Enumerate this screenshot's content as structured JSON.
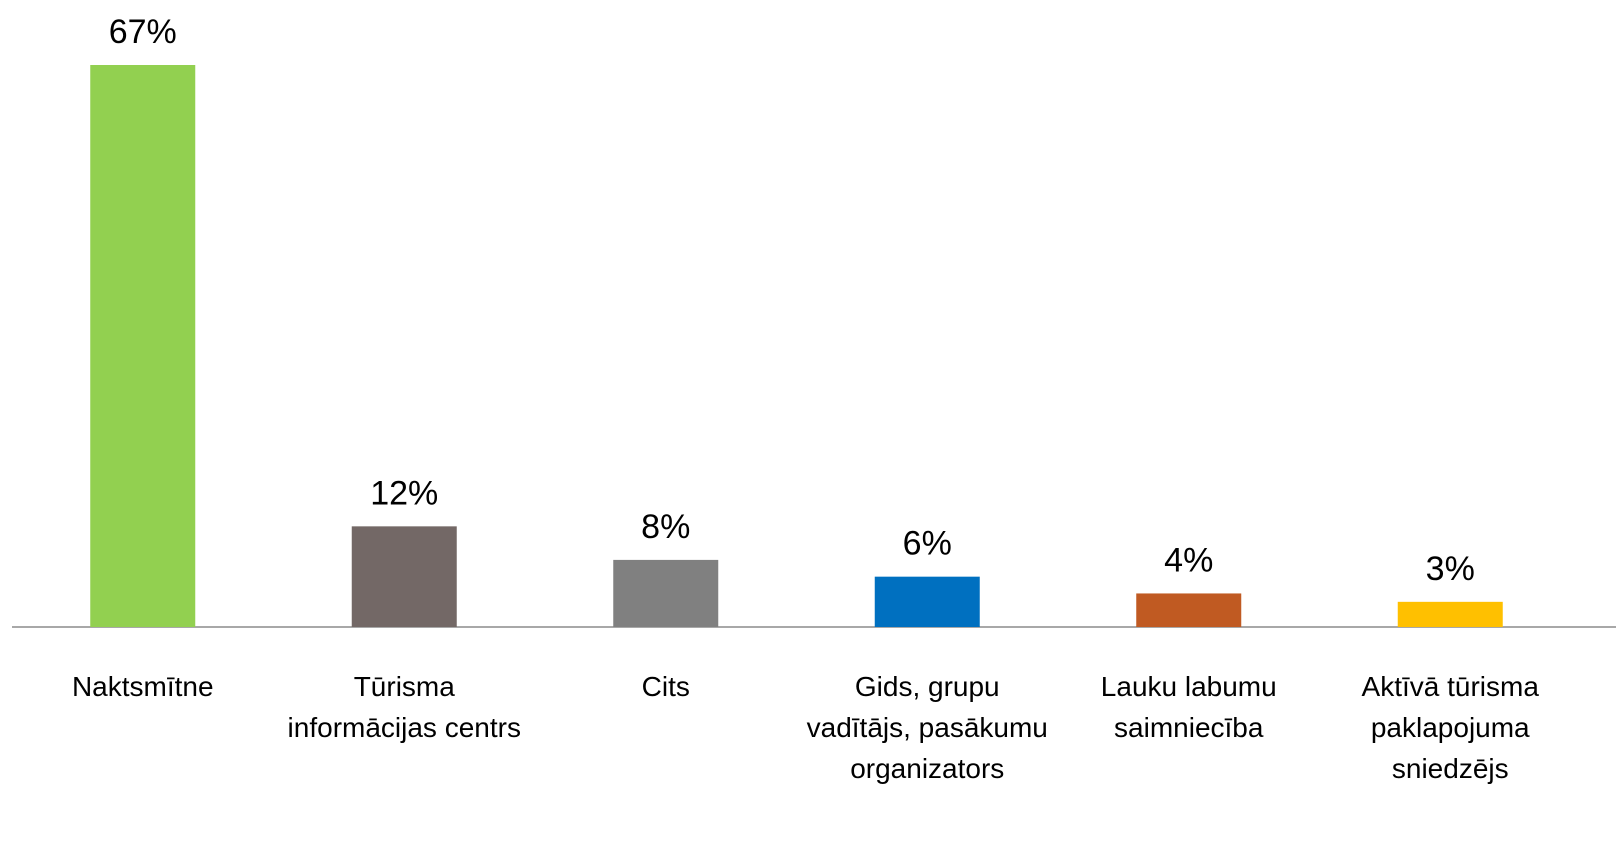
{
  "chart_data": {
    "type": "bar",
    "categories": [
      "Naktsmītne",
      "Tūrisma informācijas centrs",
      "Cits",
      "Gids, grupu vadītājs, pasākumu organizators",
      "Lauku labumu saimniecība",
      "Aktīvā tūrisma paklapojuma sniedzējs"
    ],
    "values": [
      67,
      12,
      8,
      6,
      4,
      3
    ],
    "value_labels": [
      "67%",
      "12%",
      "8%",
      "6%",
      "4%",
      "3%"
    ],
    "colors": [
      "#92d050",
      "#736866",
      "#808080",
      "#0070c0",
      "#c05a22",
      "#ffc000"
    ],
    "grid": false
  }
}
